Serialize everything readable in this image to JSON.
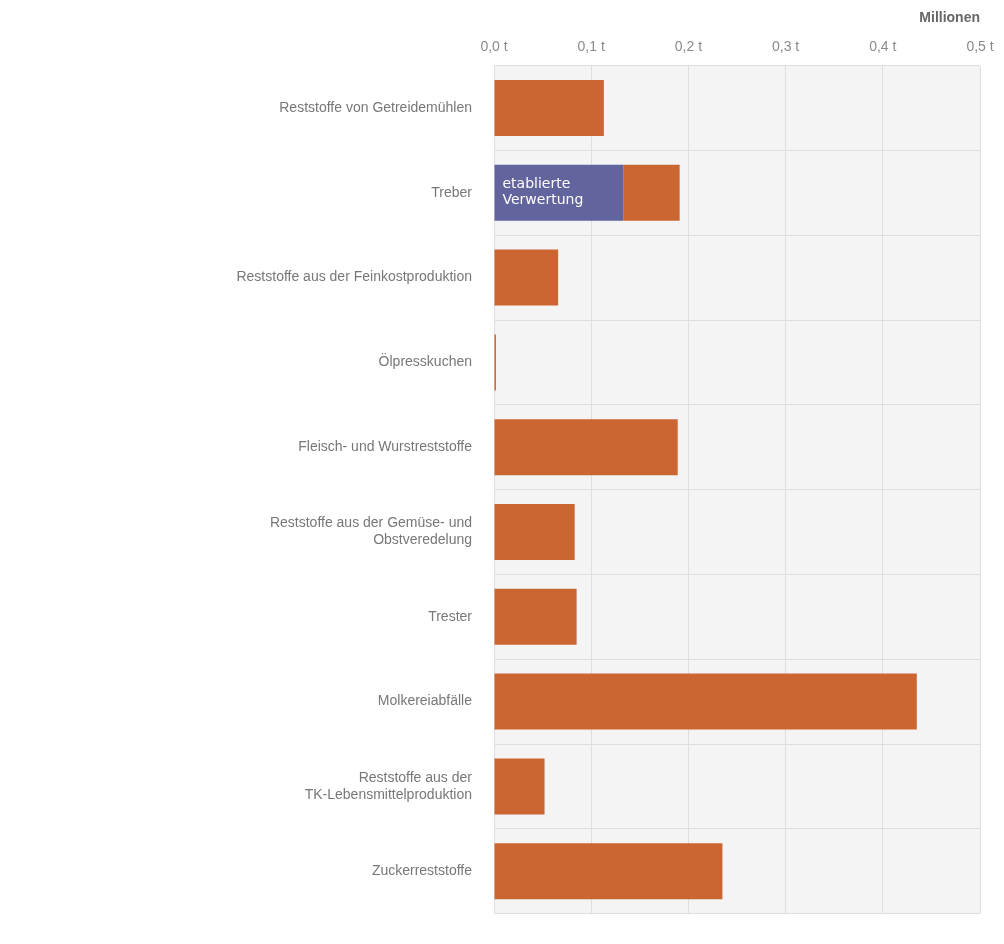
{
  "chart_data": {
    "type": "bar",
    "orientation": "horizontal",
    "stacked": true,
    "xlabel": "Millionen",
    "categories": [
      "Reststoffe von Getreidemühlen",
      "Treber",
      "Reststoffe aus der Feinkostproduktion",
      "Ölpresskuchen",
      "Fleisch- und Wurstreststoffe",
      "Reststoffe aus der Gemüse- und Obstveredelung",
      "Trester",
      "Molkereiabfälle",
      "Reststoffe aus der TK-Lebensmittelproduktion",
      "Zuckerreststoffe"
    ],
    "series": [
      {
        "name": "etablierte Verwertung",
        "color": "#62649e",
        "values": [
          null,
          0.133,
          null,
          null,
          null,
          null,
          null,
          null,
          null,
          null
        ]
      },
      {
        "color": "#cb6532",
        "values": [
          0.113,
          0.058,
          0.066,
          0.002,
          0.189,
          0.083,
          0.085,
          0.435,
          0.052,
          0.235
        ]
      }
    ],
    "xlim": [
      0,
      0.5
    ],
    "xticks": [
      {
        "value": 0,
        "label": "0,0 t"
      },
      {
        "value": 0.1,
        "label": "0,1 t"
      },
      {
        "value": 0.2,
        "label": "0,2 t"
      },
      {
        "value": 0.3,
        "label": "0,3 t"
      },
      {
        "value": 0.4,
        "label": "0,4 t"
      },
      {
        "value": 0.5,
        "label": "0,5 t"
      }
    ],
    "grid": true
  }
}
